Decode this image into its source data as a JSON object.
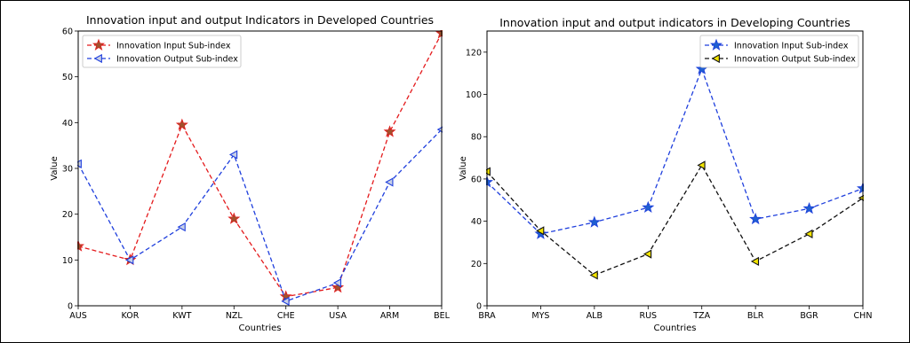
{
  "chart_data": [
    {
      "type": "line",
      "title": "Innovation input and output Indicators in Developed Countries",
      "xlabel": "Countries",
      "ylabel": "Value",
      "categories": [
        "AUS",
        "KOR",
        "KWT",
        "NZL",
        "CHE",
        "USA",
        "ARM",
        "BEL"
      ],
      "ylim": [
        0,
        60
      ],
      "yticks": [
        0,
        10,
        20,
        30,
        40,
        50,
        60
      ],
      "legend_position": "top-left",
      "grid": false,
      "series": [
        {
          "name": "Innovation Input Sub-index",
          "values": [
            13,
            10,
            39.5,
            19,
            2,
            4,
            38,
            59.5
          ],
          "color": "#e41a1c",
          "marker": "star",
          "markerFill": "#a0522d"
        },
        {
          "name": "Innovation Output Sub-index",
          "values": [
            31,
            10,
            17.2,
            33,
            1,
            5,
            27,
            38.5
          ],
          "color": "#1f3fdd",
          "marker": "triangle-left",
          "markerFill": "#c8d0e6"
        }
      ]
    },
    {
      "type": "line",
      "title": "Innovation input and output indicators in Developing Countries",
      "xlabel": "Countries",
      "ylabel": "Value",
      "categories": [
        "BRA",
        "MYS",
        "ALB",
        "RUS",
        "TZA",
        "BLR",
        "BGR",
        "CHN"
      ],
      "ylim": [
        0,
        130
      ],
      "yticks": [
        0,
        20,
        40,
        60,
        80,
        100,
        120
      ],
      "legend_position": "top-right",
      "grid": false,
      "series": [
        {
          "name": "Innovation Input Sub-index",
          "values": [
            58.5,
            34,
            39.5,
            46.5,
            112,
            41,
            46,
            55.5
          ],
          "color": "#1f3fdd",
          "marker": "star",
          "markerFill": "#1f5fd0"
        },
        {
          "name": "Innovation Output Sub-index",
          "values": [
            63.5,
            35.5,
            14.5,
            24.5,
            66.5,
            21,
            34,
            51
          ],
          "color": "#111111",
          "marker": "triangle-left",
          "markerFill": "#f2e400"
        }
      ]
    }
  ]
}
